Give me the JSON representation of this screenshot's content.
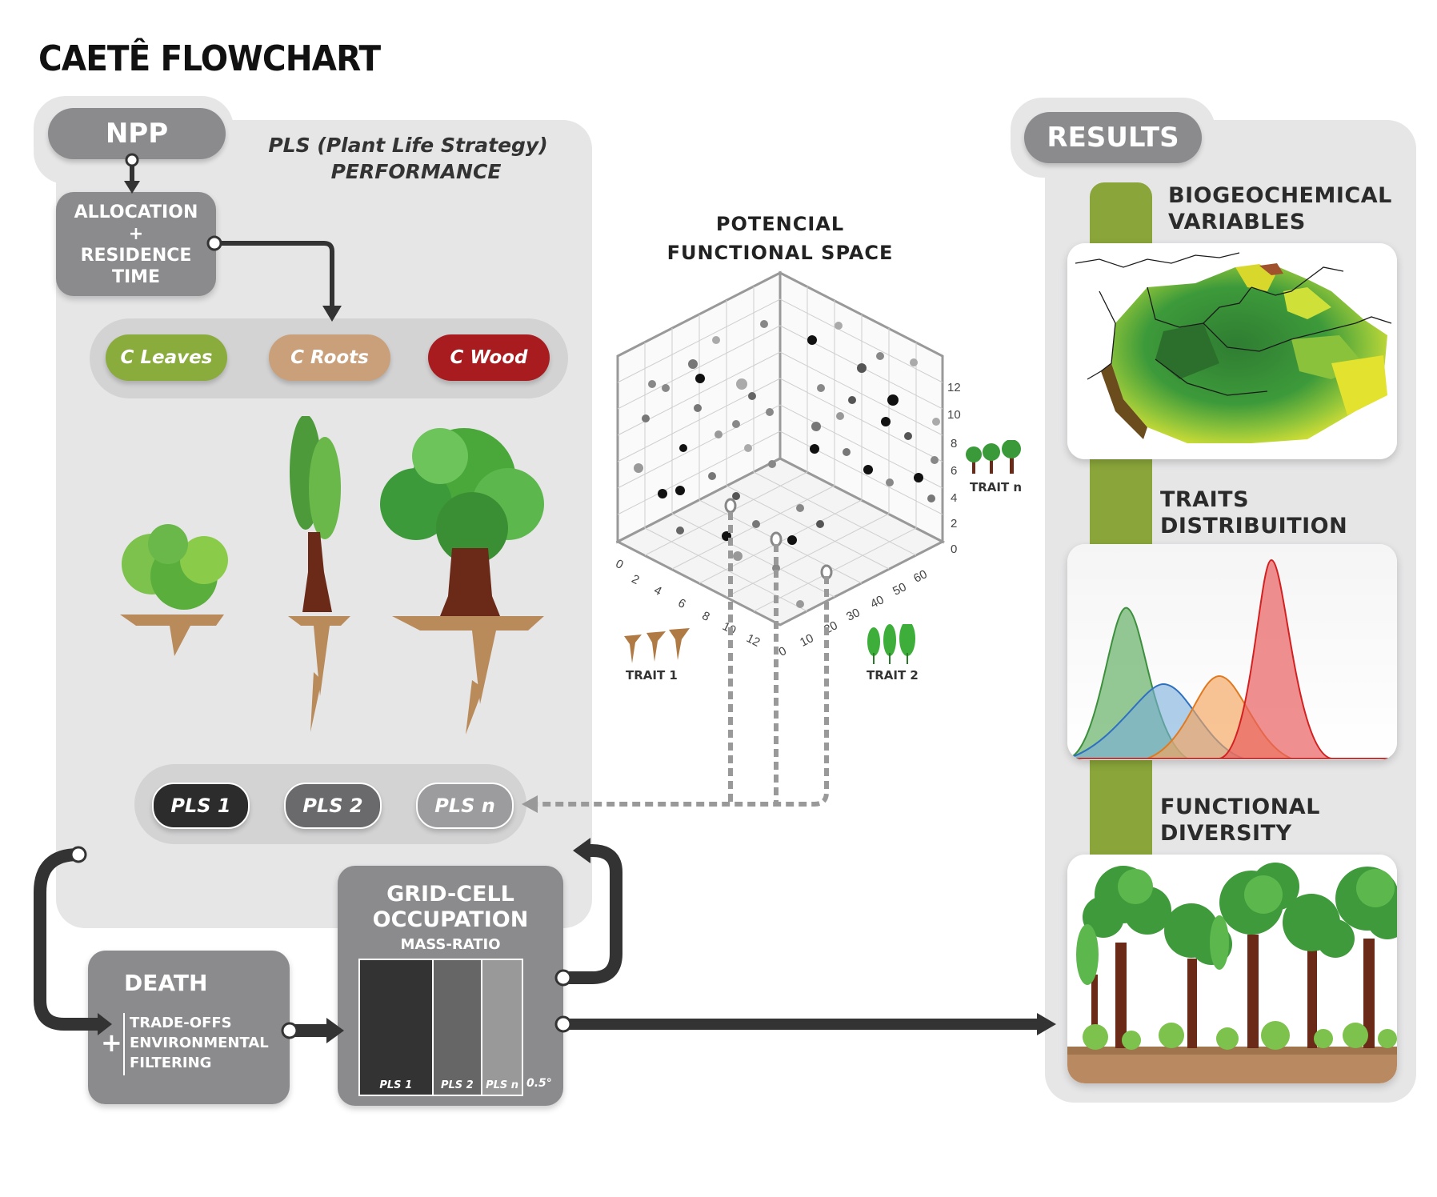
{
  "title": "CAETÊ FLOWCHART",
  "npp": {
    "label": "NPP",
    "pls_performance_line1": "PLS (Plant Life Strategy)",
    "pls_performance_line2": "PERFORMANCE",
    "allocation_lines": [
      "ALLOCATION",
      "+",
      "RESIDENCE",
      "TIME"
    ],
    "pools": [
      {
        "label": "C Leaves",
        "color": "#8aac3c"
      },
      {
        "label": "C Roots",
        "color": "#c9a07a"
      },
      {
        "label": "C Wood",
        "color": "#a81c20"
      }
    ],
    "pls_buttons": [
      {
        "label": "PLS 1",
        "color": "#2c2c2c"
      },
      {
        "label": "PLS 2",
        "color": "#6a6a6c"
      },
      {
        "label": "PLS n",
        "color": "#9c9c9e"
      }
    ]
  },
  "functional_space": {
    "title_line1": "POTENCIAL",
    "title_line2": "FUNCTIONAL SPACE",
    "trait1": "TRAIT 1",
    "trait2": "TRAIT 2",
    "traitn": "TRAIT n",
    "axis_trait1_ticks": [
      "0",
      "2",
      "4",
      "6",
      "8",
      "10",
      "12"
    ],
    "axis_trait2_ticks": [
      "0",
      "10",
      "20",
      "30",
      "40",
      "50",
      "60"
    ],
    "axis_traitn_ticks": [
      "0",
      "2",
      "4",
      "6",
      "8",
      "10",
      "12"
    ]
  },
  "death": {
    "label": "DEATH",
    "plus": "+",
    "lines": [
      "TRADE-OFFS",
      "ENVIRONMENTAL",
      "FILTERING"
    ]
  },
  "grid_cell": {
    "title_line1": "GRID-CELL",
    "title_line2": "OCCUPATION",
    "subtitle": "MASS-RATIO",
    "bars": [
      {
        "label": "PLS 1",
        "color": "#333333"
      },
      {
        "label": "PLS 2",
        "color": "#666666"
      },
      {
        "label": "PLS n",
        "color": "#999999"
      }
    ],
    "resolution": "0.5°"
  },
  "results": {
    "label": "RESULTS",
    "sections": [
      {
        "line1": "BIOGEOCHEMICAL",
        "line2": "VARIABLES"
      },
      {
        "line1": "TRAITS",
        "line2": "DISTRIBUITION"
      },
      {
        "line1": "FUNCTIONAL",
        "line2": "DIVERSITY"
      }
    ],
    "accent": "#8aa53a"
  }
}
